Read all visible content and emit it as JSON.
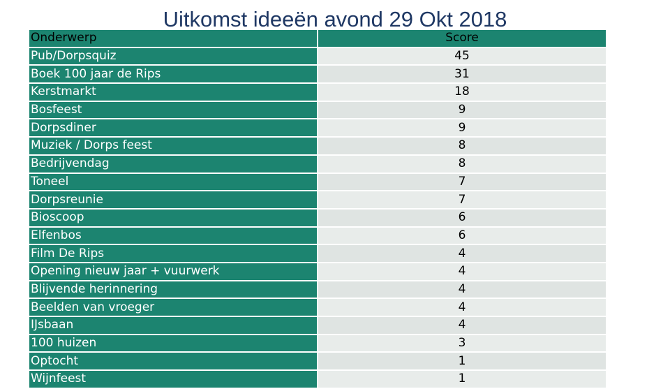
{
  "slide": {
    "title": "Uitkomst ideeën avond 29 Okt 2018"
  },
  "table": {
    "header_subject": "Onderwerp",
    "header_score": "Score",
    "rows": [
      {
        "subject": "Pub/Dorpsquiz",
        "score": "45"
      },
      {
        "subject": "Boek 100 jaar de Rips",
        "score": "31"
      },
      {
        "subject": "Kerstmarkt",
        "score": "18"
      },
      {
        "subject": "Bosfeest",
        "score": "9"
      },
      {
        "subject": "Dorpsdiner",
        "score": "9"
      },
      {
        "subject": "Muziek / Dorps feest",
        "score": "8"
      },
      {
        "subject": "Bedrijvendag",
        "score": "8"
      },
      {
        "subject": "Toneel",
        "score": "7"
      },
      {
        "subject": "Dorpsreunie",
        "score": "7"
      },
      {
        "subject": "Bioscoop",
        "score": "6"
      },
      {
        "subject": "Elfenbos",
        "score": "6"
      },
      {
        "subject": "Film De Rips",
        "score": "4"
      },
      {
        "subject": "Opening nieuw jaar + vuurwerk",
        "score": "4"
      },
      {
        "subject": "Blijvende herinnering",
        "score": "4"
      },
      {
        "subject": "Beelden van vroeger",
        "score": "4"
      },
      {
        "subject": "IJsbaan",
        "score": "4"
      },
      {
        "subject": "100 huizen",
        "score": "3"
      },
      {
        "subject": "Optocht",
        "score": "1"
      },
      {
        "subject": "Wijnfeest",
        "score": "1"
      }
    ]
  },
  "colors": {
    "subject_column": "#1c8470",
    "score_column": "#e8ecea",
    "title": "#1f3864"
  }
}
